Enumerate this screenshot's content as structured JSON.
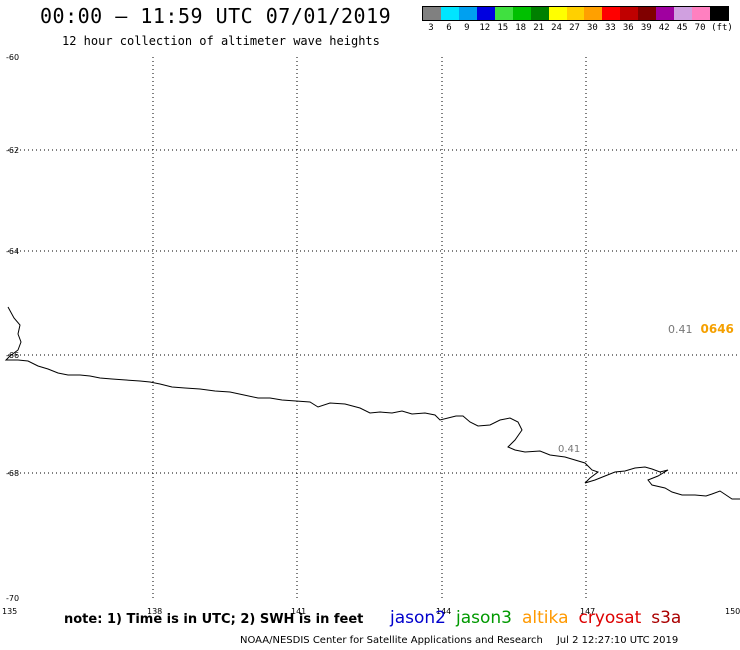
{
  "header": {
    "title": "00:00 – 11:59 UTC 07/01/2019",
    "subtitle": "12 hour collection of altimeter wave heights"
  },
  "wave_scale": {
    "colors": [
      "#808080",
      "#00e5ff",
      "#00a0f0",
      "#0000e0",
      "#40e040",
      "#00c000",
      "#008000",
      "#ffff00",
      "#ffd000",
      "#ffa000",
      "#ff0000",
      "#c00000",
      "#800000",
      "#a000a0",
      "#d0a0e0",
      "#ff80c0",
      "#000000"
    ],
    "labels": [
      "3",
      "6",
      "9",
      "12",
      "15",
      "18",
      "21",
      "24",
      "27",
      "30",
      "33",
      "36",
      "39",
      "42",
      "45",
      "70",
      "(ft)"
    ]
  },
  "map": {
    "lon_labels": [
      "135",
      "138",
      "141",
      "144",
      "147",
      "150"
    ],
    "lat_labels": [
      "-60",
      "-62",
      "-64",
      "-66",
      "-68",
      "-70"
    ],
    "observations": [
      {
        "value": "0.41",
        "color": "#777777"
      }
    ],
    "pass": {
      "value": "0.41",
      "time": "0646",
      "time_color": "#f5a000"
    }
  },
  "footer": {
    "note": "note: 1) Time is in UTC; 2) SWH is in feet",
    "satellites": [
      {
        "name": "jason2",
        "color": "#0000cc"
      },
      {
        "name": "jason3",
        "color": "#009900"
      },
      {
        "name": "altika",
        "color": "#ff9900"
      },
      {
        "name": "cryosat",
        "color": "#dd0000"
      },
      {
        "name": "s3a",
        "color": "#aa0000"
      }
    ],
    "credit": "NOAA/NESDIS Center for Satellite Applications and Research",
    "timestamp": "Jul  2 12:27:10 UTC 2019"
  }
}
